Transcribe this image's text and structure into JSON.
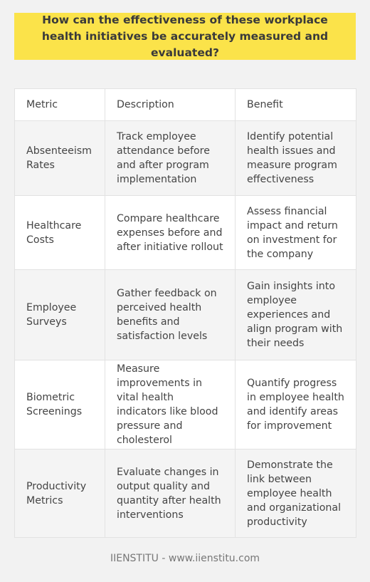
{
  "title": "How can the effectiveness of these workplace health initiatives be accurately measured and evaluated?",
  "table": {
    "headers": [
      "Metric",
      "Description",
      "Benefit"
    ],
    "rows": [
      {
        "metric": "Absenteeism Rates",
        "description": "Track employee attendance before and after program implementation",
        "benefit": "Identify potential health issues and measure program effectiveness"
      },
      {
        "metric": "Healthcare Costs",
        "description": "Compare healthcare expenses before and after initiative rollout",
        "benefit": "Assess financial impact and return on investment for the company"
      },
      {
        "metric": "Employee Surveys",
        "description": "Gather feedback on perceived health benefits and satisfaction levels",
        "benefit": "Gain insights into employee experiences and align program with their needs"
      },
      {
        "metric": "Biometric Screenings",
        "description": "Measure improvements in vital health indicators like blood pressure and cholesterol",
        "benefit": "Quantify progress in employee health and identify areas for improvement"
      },
      {
        "metric": "Productivity Metrics",
        "description": "Evaluate changes in output quality and quantity after health interventions",
        "benefit": "Demonstrate the link between employee health and organizational productivity"
      }
    ]
  },
  "footer": "IIENSTITU - www.iienstitu.com",
  "colors": {
    "banner": "#fbe34a",
    "background": "#f2f2f2",
    "stripe": "#f4f4f4"
  }
}
